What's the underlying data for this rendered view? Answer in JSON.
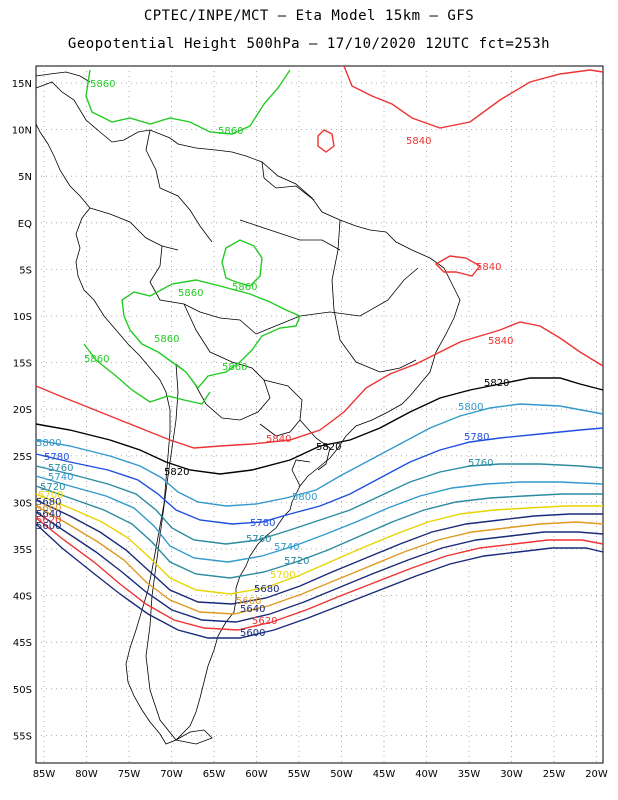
{
  "header": {
    "line1": "CPTEC/INPE/MCT –  Eta Model 15km – GFS",
    "line2": "Geopotential Height 500hPa – 17/10/2020 12UTC fct=253h"
  },
  "axes": {
    "lat_labels": [
      "15N",
      "10N",
      "5N",
      "EQ",
      "5S",
      "10S",
      "15S",
      "20S",
      "25S",
      "30S",
      "35S",
      "40S",
      "45S",
      "50S",
      "55S"
    ],
    "lon_labels": [
      "85W",
      "80W",
      "75W",
      "70W",
      "65W",
      "60W",
      "55W",
      "50W",
      "45W",
      "40W",
      "35W",
      "30W",
      "25W",
      "20W"
    ]
  },
  "contour_labels": [
    {
      "text": "5860",
      "color": "#22cc22"
    },
    {
      "text": "5860",
      "color": "#22cc22"
    },
    {
      "text": "5860",
      "color": "#22cc22"
    },
    {
      "text": "5860",
      "color": "#22cc22"
    },
    {
      "text": "5860",
      "color": "#22cc22"
    },
    {
      "text": "5860",
      "color": "#22cc22"
    },
    {
      "text": "5860",
      "color": "#22cc22"
    },
    {
      "text": "5840",
      "color": "#ee3333"
    },
    {
      "text": "5840",
      "color": "#ee3333"
    },
    {
      "text": "5840",
      "color": "#ee3333"
    },
    {
      "text": "5840",
      "color": "#ee3333"
    },
    {
      "text": "5820",
      "color": "#000000"
    },
    {
      "text": "5820",
      "color": "#000000"
    },
    {
      "text": "5820",
      "color": "#000000"
    },
    {
      "text": "5800",
      "color": "#3399cc"
    },
    {
      "text": "5800",
      "color": "#3399cc"
    },
    {
      "text": "5800",
      "color": "#3399cc"
    },
    {
      "text": "5780",
      "color": "#1f4fe0"
    },
    {
      "text": "5780",
      "color": "#1f4fe0"
    },
    {
      "text": "5780",
      "color": "#1f4fe0"
    },
    {
      "text": "5760",
      "color": "#2a8aa0"
    },
    {
      "text": "5760",
      "color": "#2a8aa0"
    },
    {
      "text": "5760",
      "color": "#2a8aa0"
    },
    {
      "text": "5740",
      "color": "#3399cc"
    },
    {
      "text": "5740",
      "color": "#3399cc"
    },
    {
      "text": "5720",
      "color": "#2a8aa0"
    },
    {
      "text": "5720",
      "color": "#2a8aa0"
    },
    {
      "text": "5700",
      "color": "#e8d400"
    },
    {
      "text": "5700",
      "color": "#e8d400"
    },
    {
      "text": "5680",
      "color": "#1a2a7a"
    },
    {
      "text": "5680",
      "color": "#1a2a7a"
    },
    {
      "text": "5660",
      "color": "#e09a20"
    },
    {
      "text": "5660",
      "color": "#e09a20"
    },
    {
      "text": "5640",
      "color": "#1a2a7a"
    },
    {
      "text": "5640",
      "color": "#1a2a7a"
    },
    {
      "text": "5620",
      "color": "#ee3333"
    },
    {
      "text": "5620",
      "color": "#ee3333"
    },
    {
      "text": "5600",
      "color": "#1a2a7a"
    },
    {
      "text": "5600",
      "color": "#1a2a7a"
    }
  ]
}
